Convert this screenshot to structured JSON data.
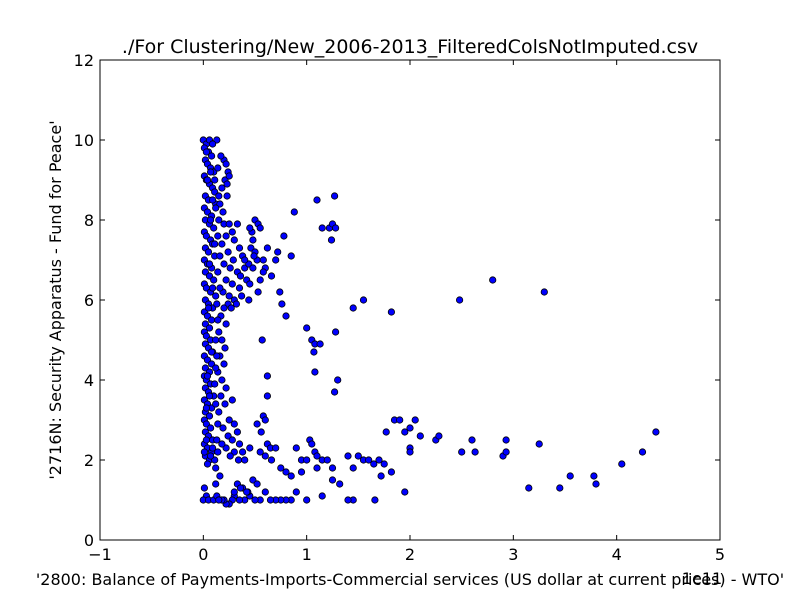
{
  "chart_data": {
    "type": "scatter",
    "title": "./For Clustering/New_2006-2013_FilteredColsNotImputed.csv",
    "xlabel": "'2800: Balance of Payments-Imports-Commercial services (US dollar at current prices) - WTO'",
    "ylabel": "'2716N: Security Apparatus - Fund for Peace'",
    "x_offset_label": "1e11",
    "xlim": [
      -1,
      5
    ],
    "ylim": [
      0,
      12
    ],
    "xticks": [
      "−1",
      "0",
      "1",
      "2",
      "3",
      "4",
      "5"
    ],
    "yticks": [
      "0",
      "2",
      "4",
      "6",
      "8",
      "10",
      "12"
    ],
    "x_scale_note": "x values in units of 1e11 US dollars",
    "marker_color": "#0000ff",
    "edge_color": "#000000",
    "points": [
      [
        0.0,
        10.0
      ],
      [
        0.03,
        9.9
      ],
      [
        0.06,
        10.0
      ],
      [
        0.13,
        10.0
      ],
      [
        0.01,
        9.8
      ],
      [
        0.05,
        9.7
      ],
      [
        0.08,
        9.6
      ],
      [
        0.02,
        9.5
      ],
      [
        0.04,
        9.4
      ],
      [
        0.07,
        9.3
      ],
      [
        0.1,
        9.2
      ],
      [
        0.01,
        9.1
      ],
      [
        0.03,
        9.0
      ],
      [
        0.06,
        8.9
      ],
      [
        0.09,
        8.8
      ],
      [
        0.11,
        8.7
      ],
      [
        0.02,
        8.6
      ],
      [
        0.05,
        8.5
      ],
      [
        0.12,
        8.4
      ],
      [
        0.01,
        8.3
      ],
      [
        0.04,
        8.2
      ],
      [
        0.08,
        8.1
      ],
      [
        0.02,
        8.0
      ],
      [
        0.06,
        7.9
      ],
      [
        0.1,
        7.8
      ],
      [
        0.01,
        7.7
      ],
      [
        0.03,
        7.6
      ],
      [
        0.07,
        7.5
      ],
      [
        0.09,
        7.4
      ],
      [
        0.02,
        7.3
      ],
      [
        0.05,
        7.2
      ],
      [
        0.11,
        7.1
      ],
      [
        0.01,
        7.0
      ],
      [
        0.04,
        6.9
      ],
      [
        0.08,
        6.8
      ],
      [
        0.02,
        6.7
      ],
      [
        0.06,
        6.6
      ],
      [
        0.1,
        6.5
      ],
      [
        0.01,
        6.4
      ],
      [
        0.03,
        6.3
      ],
      [
        0.07,
        6.2
      ],
      [
        0.12,
        6.1
      ],
      [
        0.02,
        6.0
      ],
      [
        0.05,
        5.9
      ],
      [
        0.09,
        5.8
      ],
      [
        0.01,
        5.7
      ],
      [
        0.04,
        5.6
      ],
      [
        0.08,
        5.5
      ],
      [
        0.02,
        5.4
      ],
      [
        0.06,
        5.3
      ],
      [
        0.01,
        5.2
      ],
      [
        0.03,
        5.1
      ],
      [
        0.07,
        5.0
      ],
      [
        0.02,
        4.9
      ],
      [
        0.05,
        4.8
      ],
      [
        0.09,
        4.7
      ],
      [
        0.01,
        4.6
      ],
      [
        0.04,
        4.5
      ],
      [
        0.08,
        4.4
      ],
      [
        0.02,
        4.3
      ],
      [
        0.06,
        4.2
      ],
      [
        0.01,
        4.1
      ],
      [
        0.03,
        4.0
      ],
      [
        0.07,
        3.9
      ],
      [
        0.02,
        3.8
      ],
      [
        0.05,
        3.7
      ],
      [
        0.1,
        3.6
      ],
      [
        0.01,
        3.5
      ],
      [
        0.04,
        3.4
      ],
      [
        0.08,
        3.3
      ],
      [
        0.02,
        3.2
      ],
      [
        0.06,
        3.1
      ],
      [
        0.01,
        3.0
      ],
      [
        0.03,
        2.9
      ],
      [
        0.07,
        2.8
      ],
      [
        0.02,
        2.7
      ],
      [
        0.05,
        2.6
      ],
      [
        0.09,
        2.5
      ],
      [
        0.01,
        2.4
      ],
      [
        0.04,
        2.3
      ],
      [
        0.08,
        2.2
      ],
      [
        0.02,
        2.1
      ],
      [
        0.06,
        2.0
      ],
      [
        0.11,
        2.0
      ],
      [
        0.01,
        1.3
      ],
      [
        0.03,
        1.1
      ],
      [
        0.0,
        1.0
      ],
      [
        0.05,
        1.0
      ],
      [
        0.1,
        1.0
      ],
      [
        0.13,
        1.1
      ],
      [
        0.2,
        9.5
      ],
      [
        0.22,
        9.4
      ],
      [
        0.24,
        9.2
      ],
      [
        0.21,
        9.0
      ],
      [
        0.18,
        8.8
      ],
      [
        0.23,
        8.6
      ],
      [
        0.16,
        8.4
      ],
      [
        0.19,
        8.2
      ],
      [
        0.15,
        8.0
      ],
      [
        0.2,
        7.9
      ],
      [
        0.25,
        7.9
      ],
      [
        0.28,
        7.7
      ],
      [
        0.22,
        7.6
      ],
      [
        0.3,
        7.5
      ],
      [
        0.18,
        7.4
      ],
      [
        0.24,
        7.2
      ],
      [
        0.35,
        7.3
      ],
      [
        0.29,
        7.0
      ],
      [
        0.38,
        7.1
      ],
      [
        0.2,
        6.9
      ],
      [
        0.26,
        6.8
      ],
      [
        0.33,
        6.7
      ],
      [
        0.4,
        6.8
      ],
      [
        0.22,
        6.5
      ],
      [
        0.28,
        6.4
      ],
      [
        0.35,
        6.3
      ],
      [
        0.42,
        6.5
      ],
      [
        0.19,
        6.2
      ],
      [
        0.25,
        6.1
      ],
      [
        0.3,
        6.0
      ],
      [
        0.24,
        5.9
      ],
      [
        0.2,
        5.8
      ],
      [
        0.17,
        5.6
      ],
      [
        0.22,
        5.4
      ],
      [
        0.15,
        5.2
      ],
      [
        0.18,
        5.0
      ],
      [
        0.21,
        4.8
      ],
      [
        0.16,
        4.6
      ],
      [
        0.2,
        4.4
      ],
      [
        0.14,
        4.2
      ],
      [
        0.18,
        4.0
      ],
      [
        0.22,
        3.8
      ],
      [
        0.17,
        3.6
      ],
      [
        0.28,
        3.5
      ],
      [
        0.21,
        3.4
      ],
      [
        0.15,
        3.2
      ],
      [
        0.25,
        3.0
      ],
      [
        0.3,
        2.9
      ],
      [
        0.19,
        2.8
      ],
      [
        0.33,
        2.7
      ],
      [
        0.24,
        2.6
      ],
      [
        0.28,
        2.5
      ],
      [
        0.35,
        2.4
      ],
      [
        0.22,
        2.3
      ],
      [
        0.3,
        2.2
      ],
      [
        0.38,
        2.2
      ],
      [
        0.26,
        2.1
      ],
      [
        0.34,
        2.0
      ],
      [
        0.4,
        2.0
      ],
      [
        0.45,
        2.3
      ],
      [
        0.48,
        7.5
      ],
      [
        0.5,
        8.0
      ],
      [
        0.53,
        7.9
      ],
      [
        0.47,
        7.7
      ],
      [
        0.55,
        7.8
      ],
      [
        0.46,
        7.3
      ],
      [
        0.5,
        7.2
      ],
      [
        0.52,
        7.0
      ],
      [
        0.44,
        6.9
      ],
      [
        0.48,
        6.8
      ],
      [
        0.58,
        7.0
      ],
      [
        0.6,
        6.8
      ],
      [
        0.66,
        6.6
      ],
      [
        0.72,
        7.2
      ],
      [
        0.78,
        7.6
      ],
      [
        0.85,
        7.1
      ],
      [
        0.74,
        6.2
      ],
      [
        0.76,
        5.9
      ],
      [
        0.8,
        5.6
      ],
      [
        0.88,
        8.2
      ],
      [
        0.55,
        6.5
      ],
      [
        0.45,
        6.4
      ],
      [
        0.53,
        6.2
      ],
      [
        0.44,
        6.0
      ],
      [
        0.57,
        5.0
      ],
      [
        0.62,
        4.1
      ],
      [
        0.62,
        3.6
      ],
      [
        0.58,
        3.1
      ],
      [
        0.6,
        3.0
      ],
      [
        0.52,
        2.9
      ],
      [
        0.56,
        2.7
      ],
      [
        0.62,
        2.4
      ],
      [
        0.65,
        2.3
      ],
      [
        0.55,
        2.2
      ],
      [
        0.6,
        2.1
      ],
      [
        0.66,
        2.0
      ],
      [
        0.7,
        2.3
      ],
      [
        0.75,
        1.8
      ],
      [
        0.8,
        1.7
      ],
      [
        0.85,
        1.6
      ],
      [
        0.9,
        2.3
      ],
      [
        0.95,
        2.0
      ],
      [
        1.0,
        2.0
      ],
      [
        1.03,
        2.5
      ],
      [
        1.05,
        2.4
      ],
      [
        1.08,
        2.2
      ],
      [
        1.1,
        2.1
      ],
      [
        1.15,
        2.0
      ],
      [
        1.2,
        2.0
      ],
      [
        1.25,
        1.8
      ],
      [
        1.0,
        5.3
      ],
      [
        1.05,
        5.0
      ],
      [
        1.08,
        4.9
      ],
      [
        1.13,
        4.9
      ],
      [
        1.07,
        4.7
      ],
      [
        1.08,
        4.2
      ],
      [
        1.28,
        5.2
      ],
      [
        1.3,
        4.0
      ],
      [
        1.27,
        3.7
      ],
      [
        1.1,
        8.5
      ],
      [
        1.15,
        7.8
      ],
      [
        1.22,
        7.8
      ],
      [
        1.25,
        7.9
      ],
      [
        1.28,
        7.8
      ],
      [
        1.24,
        7.5
      ],
      [
        1.27,
        8.6
      ],
      [
        1.45,
        5.8
      ],
      [
        1.55,
        6.0
      ],
      [
        1.82,
        5.7
      ],
      [
        2.48,
        6.0
      ],
      [
        2.8,
        6.5
      ],
      [
        3.3,
        6.2
      ],
      [
        1.4,
        2.1
      ],
      [
        1.45,
        1.8
      ],
      [
        1.5,
        2.1
      ],
      [
        1.55,
        2.0
      ],
      [
        1.6,
        2.0
      ],
      [
        1.65,
        1.9
      ],
      [
        1.7,
        2.0
      ],
      [
        1.75,
        1.9
      ],
      [
        1.77,
        2.7
      ],
      [
        1.85,
        3.0
      ],
      [
        1.9,
        3.0
      ],
      [
        1.95,
        2.7
      ],
      [
        2.0,
        2.8
      ],
      [
        2.05,
        3.0
      ],
      [
        2.1,
        2.6
      ],
      [
        2.0,
        2.3
      ],
      [
        2.0,
        2.2
      ],
      [
        2.25,
        2.5
      ],
      [
        2.28,
        2.6
      ],
      [
        2.5,
        2.2
      ],
      [
        2.6,
        2.5
      ],
      [
        2.63,
        2.2
      ],
      [
        2.9,
        2.1
      ],
      [
        2.93,
        2.5
      ],
      [
        2.93,
        2.2
      ],
      [
        3.25,
        2.4
      ],
      [
        4.38,
        2.7
      ],
      [
        4.25,
        2.2
      ],
      [
        4.05,
        1.9
      ],
      [
        3.8,
        1.4
      ],
      [
        3.78,
        1.6
      ],
      [
        3.55,
        1.6
      ],
      [
        3.45,
        1.3
      ],
      [
        3.15,
        1.3
      ],
      [
        1.95,
        1.2
      ],
      [
        1.82,
        1.7
      ],
      [
        1.72,
        1.6
      ],
      [
        1.45,
        1.0
      ],
      [
        1.4,
        1.0
      ],
      [
        1.32,
        1.4
      ],
      [
        1.25,
        1.5
      ],
      [
        1.15,
        1.1
      ],
      [
        1.1,
        1.8
      ],
      [
        1.0,
        1.0
      ],
      [
        0.95,
        1.7
      ],
      [
        0.9,
        1.2
      ],
      [
        0.85,
        1.0
      ],
      [
        0.8,
        1.0
      ],
      [
        0.75,
        1.0
      ],
      [
        0.7,
        1.0
      ],
      [
        0.65,
        1.0
      ],
      [
        0.6,
        1.2
      ],
      [
        0.55,
        1.0
      ],
      [
        0.5,
        1.0
      ],
      [
        0.45,
        1.1
      ],
      [
        0.4,
        1.0
      ],
      [
        0.35,
        1.0
      ],
      [
        0.3,
        1.1
      ],
      [
        0.28,
        1.0
      ],
      [
        0.25,
        0.9
      ],
      [
        0.22,
        0.9
      ],
      [
        0.2,
        1.0
      ],
      [
        0.18,
        1.0
      ],
      [
        0.33,
        1.4
      ],
      [
        0.38,
        1.3
      ],
      [
        0.43,
        1.2
      ],
      [
        0.48,
        1.5
      ],
      [
        0.52,
        1.4
      ],
      [
        1.66,
        1.0
      ],
      [
        0.42,
        1.2
      ],
      [
        0.36,
        1.3
      ],
      [
        0.3,
        1.2
      ],
      [
        0.15,
        1.0
      ],
      [
        0.12,
        1.4
      ],
      [
        0.16,
        1.6
      ],
      [
        0.12,
        1.8
      ],
      [
        0.14,
        2.2
      ],
      [
        0.18,
        2.4
      ],
      [
        0.25,
        9.1
      ],
      [
        0.14,
        9.3
      ],
      [
        0.17,
        9.6
      ],
      [
        0.11,
        9.0
      ],
      [
        0.23,
        8.9
      ],
      [
        0.15,
        8.6
      ],
      [
        0.12,
        8.3
      ],
      [
        0.14,
        7.6
      ],
      [
        0.16,
        7.1
      ],
      [
        0.14,
        6.7
      ],
      [
        0.16,
        6.3
      ],
      [
        0.13,
        5.9
      ],
      [
        0.14,
        5.5
      ],
      [
        0.12,
        5.0
      ],
      [
        0.13,
        4.6
      ],
      [
        0.12,
        4.3
      ],
      [
        0.11,
        3.9
      ],
      [
        0.12,
        3.4
      ],
      [
        0.14,
        2.9
      ],
      [
        0.13,
        2.5
      ],
      [
        0.32,
        5.9
      ],
      [
        0.37,
        6.1
      ],
      [
        0.27,
        5.8
      ],
      [
        0.33,
        7.9
      ],
      [
        0.4,
        7.0
      ],
      [
        0.36,
        6.6
      ],
      [
        0.45,
        7.8
      ],
      [
        0.49,
        7.1
      ],
      [
        0.58,
        6.7
      ],
      [
        0.62,
        7.3
      ],
      [
        0.7,
        7.0
      ],
      [
        0.03,
        3.3
      ],
      [
        0.06,
        3.6
      ],
      [
        0.04,
        4.1
      ],
      [
        0.08,
        4.7
      ],
      [
        0.05,
        5.8
      ],
      [
        0.09,
        6.3
      ],
      [
        0.06,
        6.9
      ],
      [
        0.11,
        7.4
      ],
      [
        0.07,
        8.0
      ],
      [
        0.09,
        8.5
      ],
      [
        0.04,
        9.0
      ],
      [
        0.07,
        9.2
      ],
      [
        0.03,
        9.7
      ],
      [
        0.09,
        9.9
      ],
      [
        0.01,
        2.2
      ],
      [
        0.03,
        2.5
      ],
      [
        0.07,
        2.1
      ],
      [
        0.09,
        2.3
      ],
      [
        0.04,
        1.9
      ]
    ]
  }
}
